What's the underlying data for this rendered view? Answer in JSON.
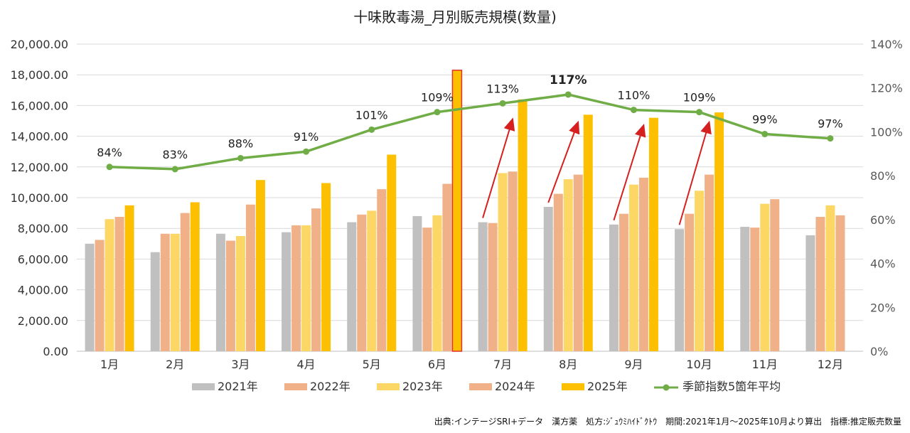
{
  "chart_data": {
    "type": "bar",
    "title": "十味敗毒湯_月別販売規模(数量)",
    "categories": [
      "1月",
      "2月",
      "3月",
      "4月",
      "5月",
      "6月",
      "7月",
      "8月",
      "9月",
      "10月",
      "11月",
      "12月"
    ],
    "series": [
      {
        "name": "2021年",
        "color": "#c0c0c0",
        "values": [
          7000,
          6450,
          7650,
          7750,
          8400,
          8800,
          8400,
          9400,
          8250,
          7950,
          8100,
          7550
        ]
      },
      {
        "name": "2022年",
        "color": "#f0b088",
        "values": [
          7250,
          7650,
          7200,
          8200,
          8900,
          8050,
          8350,
          10250,
          8950,
          8950,
          8050,
          8750
        ]
      },
      {
        "name": "2023年",
        "color": "#fcd766",
        "values": [
          8600,
          7650,
          7500,
          8200,
          9150,
          8850,
          11600,
          11200,
          10850,
          10450,
          9600,
          9500
        ]
      },
      {
        "name": "2024年",
        "color": "#f0b088",
        "values": [
          8750,
          9000,
          9550,
          9300,
          10550,
          10900,
          11700,
          11500,
          11300,
          11500,
          9900,
          8850
        ]
      },
      {
        "name": "2025年",
        "color": "#fcc000",
        "values": [
          9500,
          9700,
          11150,
          10950,
          12800,
          18300,
          16400,
          15400,
          15200,
          15550,
          null,
          null
        ]
      }
    ],
    "line_series": {
      "name": "季節指数5箇年平均",
      "color": "#70ad47",
      "values": [
        84,
        83,
        88,
        91,
        101,
        109,
        113,
        117,
        110,
        109,
        99,
        97
      ],
      "labels": [
        "84%",
        "83%",
        "88%",
        "91%",
        "101%",
        "109%",
        "113%",
        "117%",
        "110%",
        "109%",
        "99%",
        "97%"
      ],
      "bold_label_index": 7
    },
    "y_left": {
      "min": 0,
      "max": 20000,
      "step": 2000,
      "ticks": [
        "0.00",
        "2,000.00",
        "4,000.00",
        "6,000.00",
        "8,000.00",
        "10,000.00",
        "12,000.00",
        "14,000.00",
        "16,000.00",
        "18,000.00",
        "20,000.00"
      ]
    },
    "y_right": {
      "min": 0,
      "max": 140,
      "step": 20,
      "ticks": [
        "0%",
        "20%",
        "40%",
        "60%",
        "80%",
        "100%",
        "120%",
        "140%"
      ]
    },
    "highlight": {
      "category_index": 5,
      "series_index": 4,
      "border_color": "#e03030"
    },
    "arrows": {
      "color": "#d62020",
      "category_indices": [
        6,
        7,
        8,
        9
      ]
    },
    "grid": true,
    "legend_position": "bottom"
  },
  "footer_text": "出典:インテージSRI+データ　漢方薬　処方:ｼﾞｭｳﾐﾊｲﾄﾞｸﾄｳ　期間:2021年1月～2025年10月より算出　指標:推定販売数量"
}
